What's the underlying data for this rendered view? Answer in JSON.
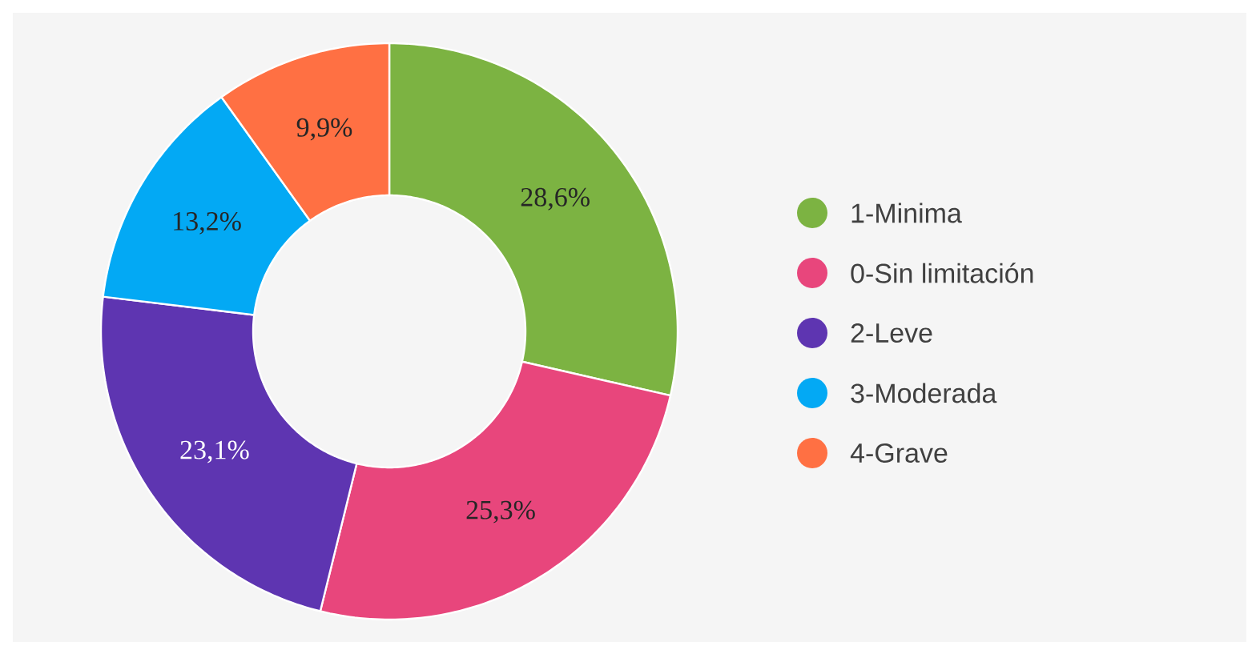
{
  "chart_data": {
    "type": "donut",
    "categories": [
      "1-Minima",
      "0-Sin limitación",
      "2-Leve",
      "3-Moderada",
      "4-Grave"
    ],
    "values": [
      28.6,
      25.3,
      23.1,
      13.2,
      9.9
    ],
    "colors": [
      "#7cb342",
      "#e8467c",
      "#5e35b1",
      "#03a9f4",
      "#ff7043"
    ],
    "value_labels": [
      "28,6%",
      "25,3%",
      "23,1%",
      "13,2%",
      "9,9%"
    ],
    "legend": "right"
  }
}
